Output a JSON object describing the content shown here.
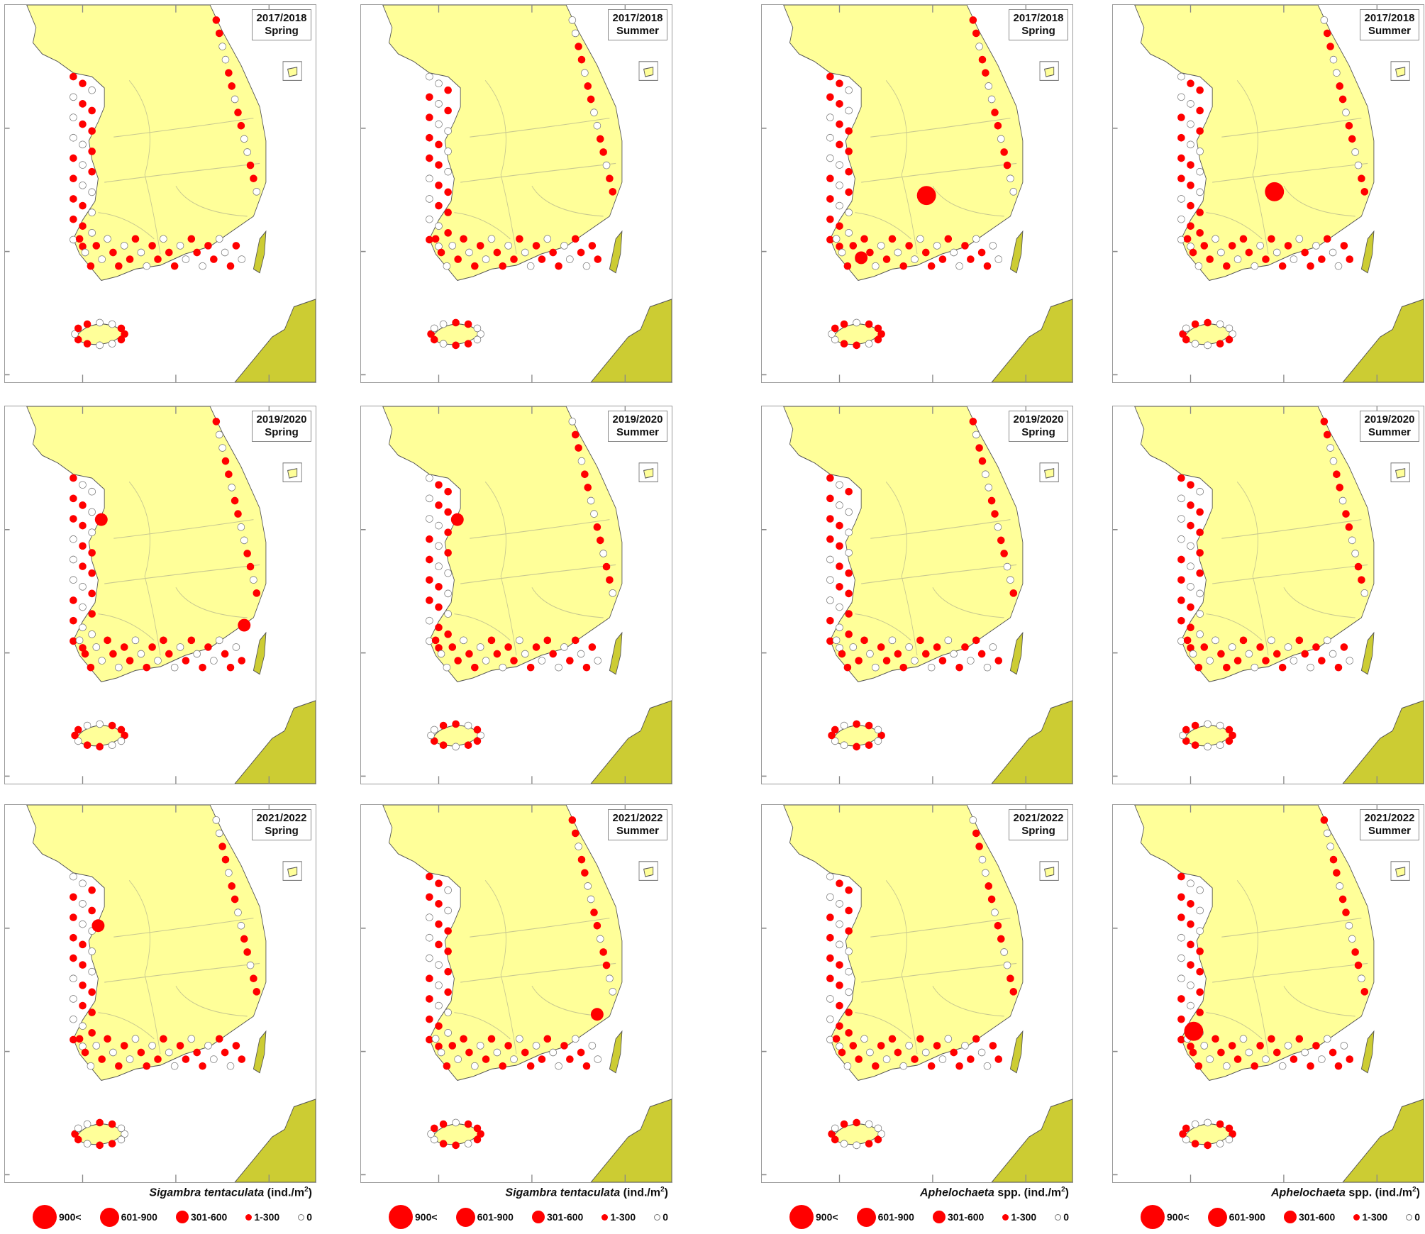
{
  "figure": {
    "colors": {
      "land_korea": "#ffff99",
      "land_japan": "#cccc33",
      "marker_present": "#ff0000",
      "marker_zero_fill": "#ffffff",
      "marker_zero_stroke": "#777777",
      "frame": "#9a9a9a"
    },
    "species": [
      {
        "italic": "Sigambra tentaculata",
        "suffix": " (ind./m",
        "sup": "2",
        "close": ")"
      },
      {
        "italic": "Sigambra tentaculata",
        "suffix": " (ind./m",
        "sup": "2",
        "close": ")"
      },
      {
        "italic": "Aphelochaeta",
        "suffix": " spp. (ind./m",
        "sup": "2",
        "close": ")"
      },
      {
        "italic": "Aphelochaeta",
        "suffix": " spp. (ind./m",
        "sup": "2",
        "close": ")"
      }
    ],
    "legend_classes": [
      {
        "label": "900<",
        "size": 34
      },
      {
        "label": "601-900",
        "size": 27
      },
      {
        "label": "301-600",
        "size": 18
      },
      {
        "label": "1-300",
        "size": 9
      },
      {
        "label": "0",
        "size": 9,
        "zero": true
      }
    ],
    "panels": [
      {
        "period": "2017/2018",
        "season": "Spring",
        "species": "Sigambra tentaculata",
        "large_markers": []
      },
      {
        "period": "2017/2018",
        "season": "Summer",
        "species": "Sigambra tentaculata",
        "large_markers": []
      },
      {
        "period": "2017/2018",
        "season": "Spring",
        "species": "Aphelochaeta spp.",
        "large_markers": [
          {
            "class": "601-900",
            "x": 0.53,
            "y": 0.505
          },
          {
            "class": "301-600",
            "x": 0.32,
            "y": 0.67
          }
        ]
      },
      {
        "period": "2017/2018",
        "season": "Summer",
        "species": "Aphelochaeta spp.",
        "large_markers": [
          {
            "class": "601-900",
            "x": 0.52,
            "y": 0.495
          }
        ]
      },
      {
        "period": "2019/2020",
        "season": "Spring",
        "species": "Sigambra tentaculata",
        "large_markers": [
          {
            "class": "301-600",
            "x": 0.31,
            "y": 0.3
          },
          {
            "class": "301-600",
            "x": 0.77,
            "y": 0.58
          }
        ]
      },
      {
        "period": "2019/2020",
        "season": "Summer",
        "species": "Sigambra tentaculata",
        "large_markers": [
          {
            "class": "301-600",
            "x": 0.31,
            "y": 0.3
          }
        ]
      },
      {
        "period": "2019/2020",
        "season": "Spring",
        "species": "Aphelochaeta spp.",
        "large_markers": []
      },
      {
        "period": "2019/2020",
        "season": "Summer",
        "species": "Aphelochaeta spp.",
        "large_markers": []
      },
      {
        "period": "2021/2022",
        "season": "Spring",
        "species": "Sigambra tentaculata",
        "large_markers": [
          {
            "class": "301-600",
            "x": 0.3,
            "y": 0.32
          }
        ]
      },
      {
        "period": "2021/2022",
        "season": "Summer",
        "species": "Sigambra tentaculata",
        "large_markers": [
          {
            "class": "301-600",
            "x": 0.76,
            "y": 0.555
          }
        ]
      },
      {
        "period": "2021/2022",
        "season": "Spring",
        "species": "Aphelochaeta spp.",
        "large_markers": []
      },
      {
        "period": "2021/2022",
        "season": "Summer",
        "species": "Aphelochaeta spp.",
        "large_markers": [
          {
            "class": "601-900",
            "x": 0.26,
            "y": 0.6
          }
        ]
      }
    ]
  }
}
